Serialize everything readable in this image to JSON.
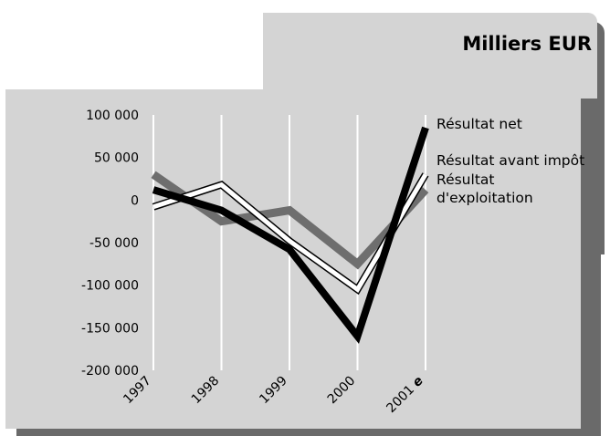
{
  "header": {
    "title": "Milliers EUR"
  },
  "chart_data": {
    "type": "line",
    "categories": [
      "1997",
      "1998",
      "1999",
      "2000",
      "2001"
    ],
    "category_suffix": {
      "2001": "e"
    },
    "ylim": [
      -200000,
      100000
    ],
    "yticks": [
      100000,
      50000,
      0,
      -50000,
      -100000,
      -150000,
      -200000
    ],
    "ytick_labels": [
      "100 000",
      "50 000",
      "0",
      "-50 000",
      "-100 000",
      "-150 000",
      "-200 000"
    ],
    "grid": "vertical",
    "legend_placement": "right, at line ends",
    "series": [
      {
        "name": "Résultat net",
        "values": [
          12000,
          -12000,
          -58000,
          -160000,
          85000
        ],
        "color": "#000000"
      },
      {
        "name": "Résultat avant impôt",
        "values": [
          -8000,
          18000,
          -48000,
          -105000,
          30000
        ],
        "color": "#ffffff"
      },
      {
        "name": "Résultat d'exploitation",
        "name_lines": [
          "Résultat",
          "d'exploitation"
        ],
        "values": [
          30000,
          -25000,
          -12000,
          -75000,
          12000
        ],
        "color": "#808080"
      }
    ]
  }
}
